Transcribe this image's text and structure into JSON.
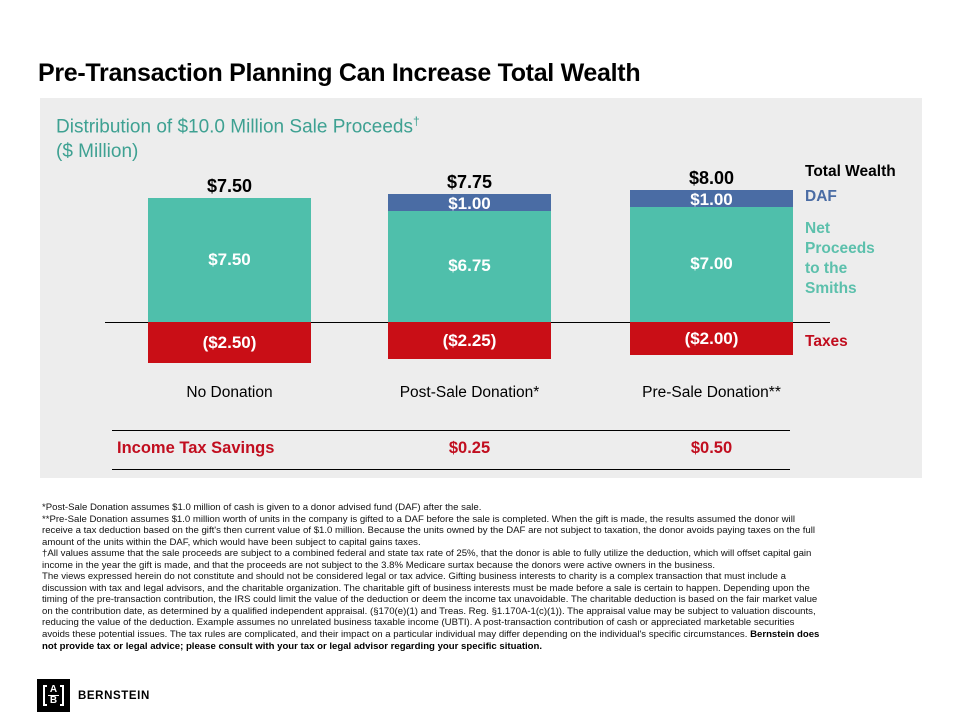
{
  "slide": {
    "title": "Pre-Transaction Planning Can Increase Total Wealth"
  },
  "chart_data": {
    "type": "bar",
    "variant": "stacked-column-with-negative",
    "title": "Distribution of $10.0 Million Sale Proceeds",
    "title_dagger": "†",
    "units_label": "($ Million)",
    "categories": [
      "No Donation",
      "Post-Sale Donation*",
      "Pre-Sale Donation**"
    ],
    "totals": [
      "$7.50",
      "$7.75",
      "$8.00"
    ],
    "series": [
      {
        "name": "DAF",
        "color": "#4A6CA4",
        "values": [
          0,
          1.0,
          1.0
        ],
        "labels": [
          "",
          "$1.00",
          "$1.00"
        ]
      },
      {
        "name": "Net Proceeds to the Smiths",
        "color": "#4FBFAB",
        "values": [
          7.5,
          6.75,
          7.0
        ],
        "labels": [
          "$7.50",
          "$6.75",
          "$7.00"
        ]
      },
      {
        "name": "Taxes",
        "color": "#C90E16",
        "values": [
          -2.5,
          -2.25,
          -2.0
        ],
        "labels": [
          "($2.50)",
          "($2.25)",
          "($2.00)"
        ]
      }
    ],
    "legend": [
      {
        "label": "Total Wealth",
        "color": "#000000"
      },
      {
        "label": "DAF",
        "color": "#4A6CA4"
      },
      {
        "label": "Net Proceeds to the Smiths",
        "color": "#5CC0AC"
      },
      {
        "label": "Taxes",
        "color": "#C10E1F"
      }
    ],
    "legend_position": "right",
    "baseline": 0,
    "grid": false,
    "panel_background": "#EDEDED",
    "header_color": "#3EA192"
  },
  "income_row": {
    "label": "Income Tax Savings",
    "values": [
      "",
      "$0.25",
      "$0.50"
    ],
    "color": "#C10E1F"
  },
  "footnotes": {
    "regular_text": "*Post-Sale Donation assumes $1.0 million of cash is given to a donor advised fund (DAF) after the sale.\n**Pre-Sale Donation assumes $1.0 million worth of units in the company is gifted to a DAF before the sale is completed. When the gift is made, the results assumed the donor will\nreceive a tax deduction based on the gift's then current value of $1.0 million. Because the units owned by the DAF are not subject to taxation, the donor avoids paying taxes on the full\namount of the units within the DAF, which would have been subject to capital gains taxes.\n†All values assume that the sale proceeds are subject to a combined federal and state tax rate of 25%, that the donor is able to fully utilize the deduction, which will offset capital gain\nincome in the year the gift is made, and that the proceeds are not subject to the 3.8% Medicare surtax because the donors were active owners in the business.\nThe views expressed herein do not constitute and should not be considered legal or tax advice. Gifting business interests to charity is a complex transaction that must include a\ndiscussion with tax and legal advisors, and the charitable organization. The charitable gift of business interests must be made before a sale is certain to happen. Depending upon the\ntiming of the pre-transaction contribution, the IRS could limit the value of the deduction or deem the income tax unavoidable. The charitable deduction is based on the fair market value\non the contribution date, as determined by a qualified independent appraisal. (§170(e)(1) and Treas. Reg. §1.170A-1(c)(1)). The appraisal value may be subject to valuation discounts,\nreducing the value of the deduction. Example assumes no unrelated business taxable income (UBTI). A post-transaction contribution of cash or appreciated marketable securities\navoids these potential issues. The tax rules are complicated, and their impact on a particular individual may differ depending on the individual's specific circumstances. ",
    "bold_text": "Bernstein does\nnot provide tax or legal advice; please consult with your tax or legal advisor regarding your specific situation."
  },
  "footer": {
    "logo_top": "A",
    "logo_bottom": "B",
    "brand": "BERNSTEIN"
  }
}
